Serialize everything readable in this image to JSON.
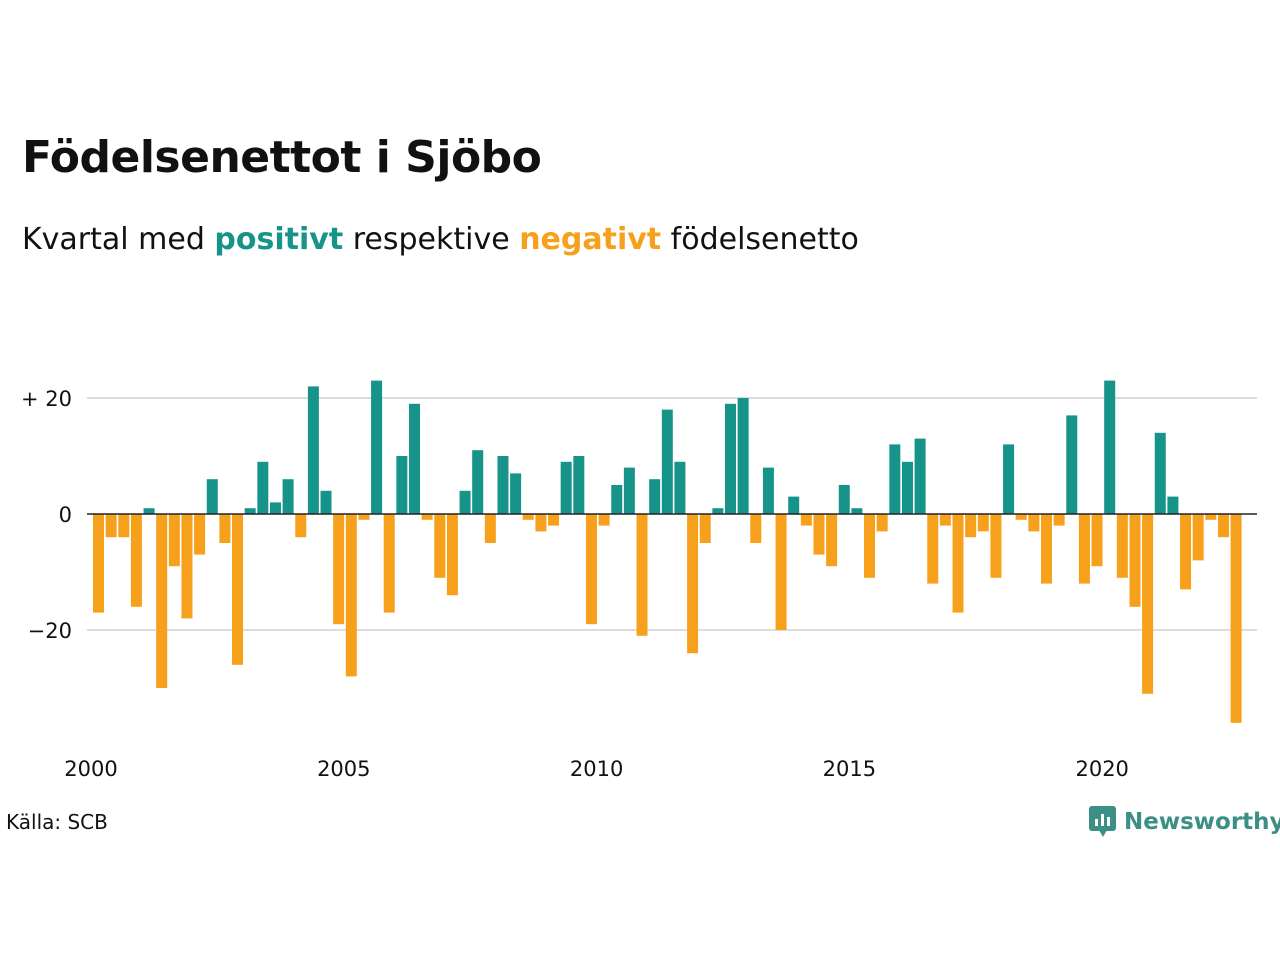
{
  "header": {
    "title": "Födelsenettot i Sjöbo",
    "subtitle_start": "Kvartal med ",
    "subtitle_positive": "positivt",
    "subtitle_middle": " respektive ",
    "subtitle_negative": "negativt",
    "subtitle_end": " födelsenetto"
  },
  "colors": {
    "positive": "#16948a",
    "negative": "#f7a01c",
    "grid": "#dddddd",
    "baseline": "#222222",
    "brand": "#3b8f85"
  },
  "footer": {
    "source": "Källa: SCB",
    "brand": "Newsworthy",
    "brand_icon": "newsworthy-chart-bubble-icon"
  },
  "chart_data": {
    "type": "bar",
    "title": "Födelsenettot i Sjöbo",
    "xlabel": "",
    "ylabel": "",
    "grid": "horizontal",
    "ylim": [
      -36,
      23
    ],
    "yticks": [
      {
        "value": 20,
        "label": "+ 20"
      },
      {
        "value": 0,
        "label": "0"
      },
      {
        "value": -20,
        "label": "−20"
      }
    ],
    "xticks": [
      {
        "value": 2000,
        "label": "2000"
      },
      {
        "value": 2005,
        "label": "2005"
      },
      {
        "value": 2010,
        "label": "2010"
      },
      {
        "value": 2015,
        "label": "2015"
      },
      {
        "value": 2020,
        "label": "2020"
      }
    ],
    "start_year": 2000,
    "quarters_per_year": 4,
    "values": [
      -17,
      -4,
      -4,
      -16,
      1,
      -30,
      -9,
      -18,
      -7,
      6,
      -5,
      -26,
      1,
      9,
      2,
      6,
      -4,
      22,
      4,
      -19,
      -28,
      -1,
      23,
      -17,
      10,
      19,
      -1,
      -11,
      -14,
      4,
      11,
      -5,
      10,
      7,
      -1,
      -3,
      -2,
      9,
      10,
      -19,
      -2,
      5,
      8,
      -21,
      6,
      18,
      9,
      -24,
      -5,
      1,
      19,
      20,
      -5,
      8,
      -20,
      3,
      -2,
      -7,
      -9,
      5,
      1,
      -11,
      -3,
      12,
      9,
      13,
      -12,
      -2,
      -17,
      -4,
      -3,
      -11,
      12,
      -1,
      -3,
      -12,
      -2,
      17,
      -12,
      -9,
      23,
      -11,
      -16,
      -31,
      14,
      3,
      -13,
      -8,
      -1,
      -4,
      -36
    ]
  }
}
